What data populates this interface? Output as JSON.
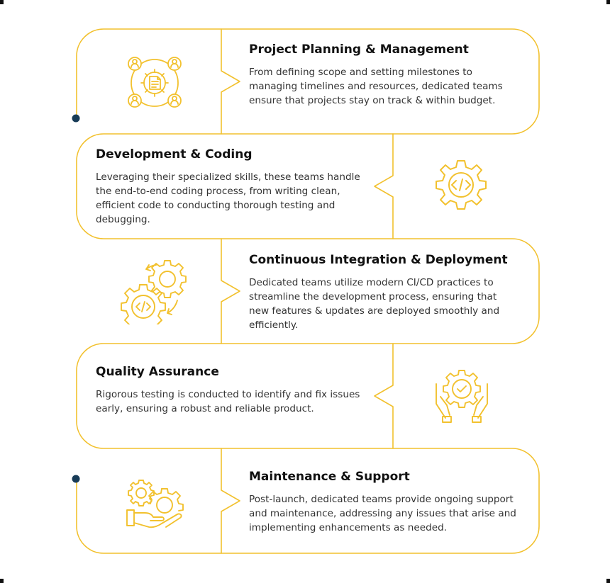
{
  "colors": {
    "accent": "#F2C12E",
    "dot": "#173B57",
    "title": "#111111",
    "text": "#333333"
  },
  "steps": [
    {
      "title": "Project Planning & Management",
      "description": "From defining scope and setting milestones to managing timelines and resources, dedicated teams ensure that projects stay on track & within budget.",
      "icon": "team-document-icon"
    },
    {
      "title": "Development & Coding",
      "description": "Leveraging their specialized skills, these teams handle the end-to-end coding process, from writing clean, efficient code to conducting thorough testing and debugging.",
      "icon": "code-gear-icon"
    },
    {
      "title": "Continuous Integration & Deployment",
      "description": "Dedicated teams utilize modern CI/CD practices to streamline the development process, ensuring that new features & updates are deployed smoothly and efficiently.",
      "icon": "cicd-gears-icon"
    },
    {
      "title": "Quality Assurance",
      "description": "Rigorous testing is conducted to identify and fix issues early, ensuring a robust and reliable product.",
      "icon": "hands-gear-check-icon"
    },
    {
      "title": "Maintenance & Support",
      "description": "Post-launch, dedicated teams provide ongoing support and maintenance, addressing any issues that arise and implementing enhancements as needed.",
      "icon": "hand-gears-icon"
    }
  ]
}
